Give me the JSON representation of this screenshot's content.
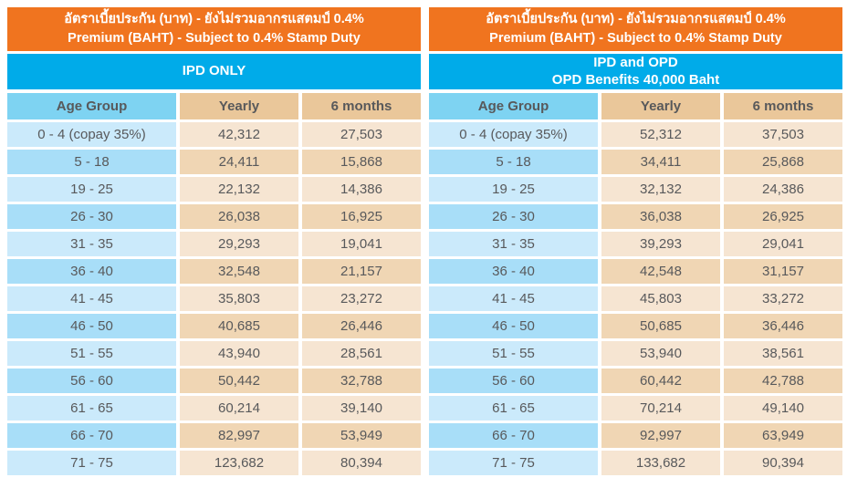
{
  "colors": {
    "header_orange": "#F0741F",
    "plan_blue": "#00ABE9",
    "age_header_blue": "#7ED3F2",
    "value_header_tan": "#EAC79A",
    "age_row_light": "#CBEAFB",
    "age_row_dark": "#A8DEF8",
    "value_row_light": "#F6E5D2",
    "value_row_dark": "#F0D6B4",
    "text_gray": "#58595B",
    "text_white": "#FFFFFF"
  },
  "tables": [
    {
      "id": "ipd-only",
      "title_th": "อัตราเบี้ยประกัน (บาท) - ยังไม่รวมอากรแสตมป์ 0.4%",
      "title_en": "Premium (BAHT) - Subject to 0.4% Stamp Duty",
      "plan": [
        "IPD ONLY"
      ],
      "columns": [
        "Age Group",
        "Yearly",
        "6 months"
      ],
      "rows": [
        {
          "age": "0 - 4 (copay 35%)",
          "yearly": "42,312",
          "six_months": "27,503"
        },
        {
          "age": "5 - 18",
          "yearly": "24,411",
          "six_months": "15,868"
        },
        {
          "age": "19 - 25",
          "yearly": "22,132",
          "six_months": "14,386"
        },
        {
          "age": "26 - 30",
          "yearly": "26,038",
          "six_months": "16,925"
        },
        {
          "age": "31 - 35",
          "yearly": "29,293",
          "six_months": "19,041"
        },
        {
          "age": "36 - 40",
          "yearly": "32,548",
          "six_months": "21,157"
        },
        {
          "age": "41 - 45",
          "yearly": "35,803",
          "six_months": "23,272"
        },
        {
          "age": "46 - 50",
          "yearly": "40,685",
          "six_months": "26,446"
        },
        {
          "age": "51 - 55",
          "yearly": "43,940",
          "six_months": "28,561"
        },
        {
          "age": "56 - 60",
          "yearly": "50,442",
          "six_months": "32,788"
        },
        {
          "age": "61 - 65",
          "yearly": "60,214",
          "six_months": "39,140"
        },
        {
          "age": "66 - 70",
          "yearly": "82,997",
          "six_months": "53,949"
        },
        {
          "age": "71 - 75",
          "yearly": "123,682",
          "six_months": "80,394"
        }
      ]
    },
    {
      "id": "ipd-and-opd",
      "title_th": "อัตราเบี้ยประกัน (บาท) - ยังไม่รวมอากรแสตมป์ 0.4%",
      "title_en": "Premium (BAHT) - Subject to 0.4% Stamp Duty",
      "plan": [
        "IPD and OPD",
        "OPD Benefits 40,000 Baht"
      ],
      "columns": [
        "Age Group",
        "Yearly",
        "6 months"
      ],
      "rows": [
        {
          "age": "0 - 4 (copay 35%)",
          "yearly": "52,312",
          "six_months": "37,503"
        },
        {
          "age": "5 - 18",
          "yearly": "34,411",
          "six_months": "25,868"
        },
        {
          "age": "19 - 25",
          "yearly": "32,132",
          "six_months": "24,386"
        },
        {
          "age": "26 - 30",
          "yearly": "36,038",
          "six_months": "26,925"
        },
        {
          "age": "31 - 35",
          "yearly": "39,293",
          "six_months": "29,041"
        },
        {
          "age": "36 - 40",
          "yearly": "42,548",
          "six_months": "31,157"
        },
        {
          "age": "41 - 45",
          "yearly": "45,803",
          "six_months": "33,272"
        },
        {
          "age": "46 - 50",
          "yearly": "50,685",
          "six_months": "36,446"
        },
        {
          "age": "51 - 55",
          "yearly": "53,940",
          "six_months": "38,561"
        },
        {
          "age": "56 - 60",
          "yearly": "60,442",
          "six_months": "42,788"
        },
        {
          "age": "61 - 65",
          "yearly": "70,214",
          "six_months": "49,140"
        },
        {
          "age": "66 - 70",
          "yearly": "92,997",
          "six_months": "63,949"
        },
        {
          "age": "71 - 75",
          "yearly": "133,682",
          "six_months": "90,394"
        }
      ]
    }
  ]
}
